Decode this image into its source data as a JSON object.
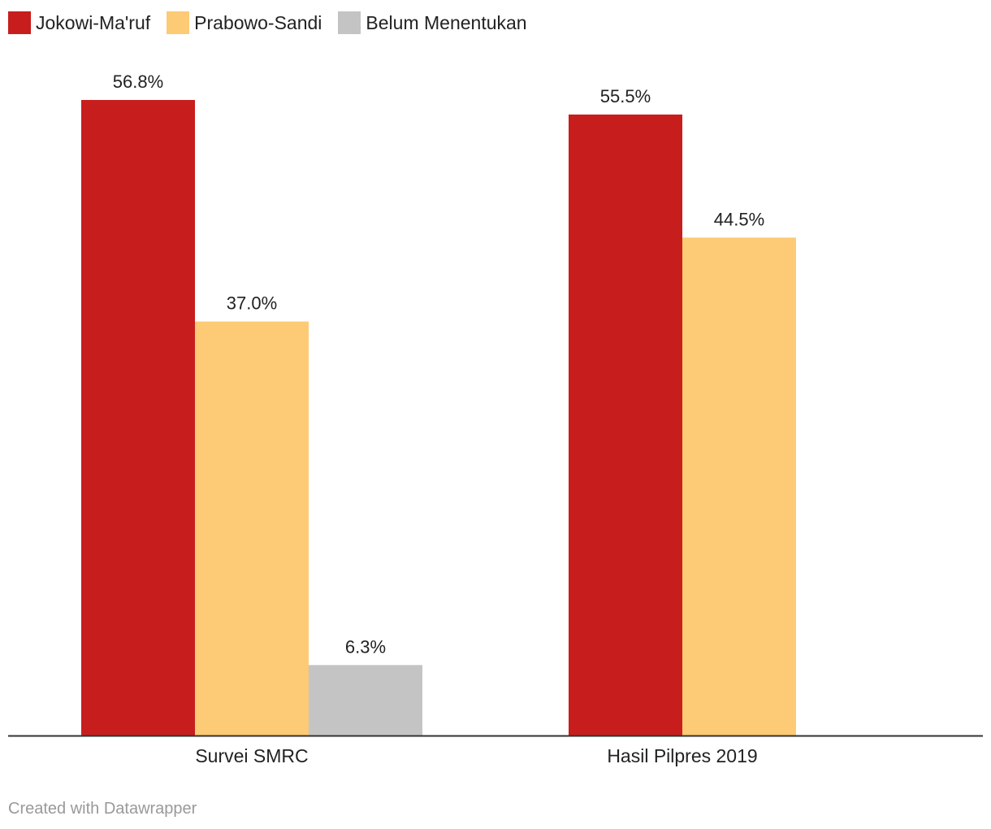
{
  "chart_data": {
    "type": "bar",
    "categories": [
      "Survei SMRC",
      "Hasil Pilpres 2019"
    ],
    "series": [
      {
        "name": "Jokowi-Ma'ruf",
        "color": "#c71e1d",
        "values": [
          56.8,
          55.5
        ],
        "labels": [
          "56.8%",
          "55.5%"
        ]
      },
      {
        "name": "Prabowo-Sandi",
        "color": "#fdca76",
        "values": [
          37.0,
          44.5
        ],
        "labels": [
          "37.0%",
          "44.5%"
        ]
      },
      {
        "name": "Belum Menentukan",
        "color": "#c4c4c4",
        "values": [
          6.3,
          null
        ],
        "labels": [
          "6.3%",
          ""
        ]
      }
    ],
    "ylim": [
      0,
      60
    ],
    "grid": false,
    "legend_position": "top-left",
    "xlabel": "",
    "ylabel": ""
  },
  "footer": {
    "credit": "Created with Datawrapper"
  }
}
